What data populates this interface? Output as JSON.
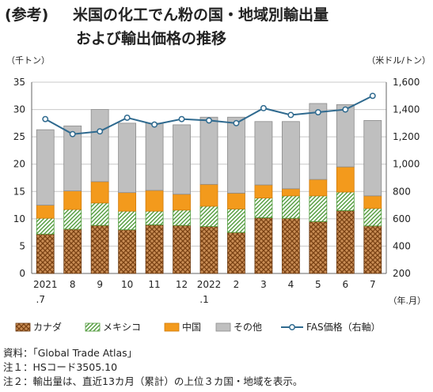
{
  "title": {
    "tag": "(参考)",
    "line1": "米国の化工でん粉の国・地域別輸出量",
    "line2": "および輸出価格の推移"
  },
  "notes": [
    "資料：「Global Trade Atlas」",
    "注１：HSコード3505.10",
    "注２：輸出量は、直近13カ月（累計）の上位３カ国・地域を表示。"
  ],
  "colors": {
    "canada": "#a0602a",
    "mexico": "#6aa84f",
    "china": "#f39a1c",
    "other": "#bfbfbf",
    "fas": "#2f6a8f"
  },
  "chart_data": {
    "type": "bar",
    "stacked": true,
    "categories": [
      "2021\n.7",
      "8",
      "9",
      "10",
      "11",
      "12",
      "2022\n.1",
      "2",
      "3",
      "4",
      "5",
      "6",
      "7"
    ],
    "y_left_label": "（千トン）",
    "y_right_label": "（米ドル/トン）",
    "x_unit_label": "（年.月）",
    "ylim_left": [
      0,
      35
    ],
    "yticks_left": [
      0,
      5,
      10,
      15,
      20,
      25,
      30,
      35
    ],
    "ylim_right": [
      200,
      1600
    ],
    "yticks_right": [
      "200",
      "400",
      "600",
      "800",
      "1,000",
      "1,200",
      "1,400",
      "1,600"
    ],
    "series": [
      {
        "name": "カナダ",
        "key": "canada",
        "values": [
          7.2,
          8.1,
          8.8,
          8.0,
          8.9,
          8.8,
          8.6,
          7.5,
          10.2,
          10.1,
          9.5,
          11.5,
          8.7
        ]
      },
      {
        "name": "メキシコ",
        "key": "mexico",
        "values": [
          2.9,
          3.6,
          4.1,
          3.4,
          2.5,
          2.8,
          3.7,
          4.3,
          3.6,
          4.1,
          4.7,
          3.4,
          3.2
        ]
      },
      {
        "name": "中国",
        "key": "china",
        "values": [
          2.4,
          3.4,
          3.9,
          3.4,
          3.8,
          2.9,
          4.0,
          2.9,
          2.4,
          1.3,
          3.0,
          4.6,
          2.3
        ]
      },
      {
        "name": "その他",
        "key": "other",
        "values": [
          13.8,
          11.9,
          13.2,
          12.7,
          12.3,
          12.7,
          12.3,
          13.9,
          11.6,
          12.3,
          13.9,
          11.4,
          13.8
        ]
      }
    ],
    "line_series": {
      "name": "FAS価格（右軸）",
      "key": "fas",
      "values": [
        1330,
        1220,
        1240,
        1340,
        1290,
        1330,
        1320,
        1300,
        1410,
        1360,
        1380,
        1400,
        1500
      ]
    },
    "legend": [
      "カナダ",
      "メキシコ",
      "中国",
      "その他",
      "FAS価格（右軸）"
    ],
    "legend_position": "bottom",
    "grid": true
  }
}
